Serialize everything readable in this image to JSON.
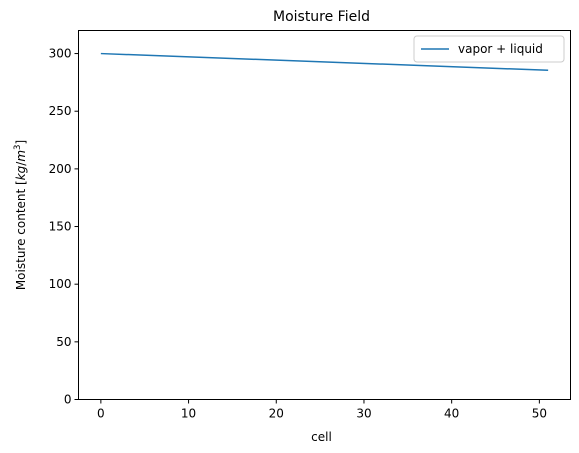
{
  "chart_data": {
    "type": "line",
    "title": "Moisture Field",
    "xlabel": "cell",
    "ylabel_prefix": "Moisture content [",
    "ylabel_unit_kg": "kg",
    "ylabel_unit_slash": "/",
    "ylabel_unit_m": "m",
    "ylabel_unit_exp": "3",
    "ylabel_suffix": "]",
    "xlim": [
      -2.55,
      53.55
    ],
    "ylim": [
      0,
      320
    ],
    "xticks": [
      0,
      10,
      20,
      30,
      40,
      50
    ],
    "yticks": [
      0,
      50,
      100,
      150,
      200,
      250,
      300
    ],
    "grid": false,
    "legend_position": "top-right",
    "series": [
      {
        "name": "vapor + liquid",
        "color": "#1f77b4",
        "x": [
          0,
          51
        ],
        "y": [
          300,
          285.5
        ]
      }
    ]
  }
}
